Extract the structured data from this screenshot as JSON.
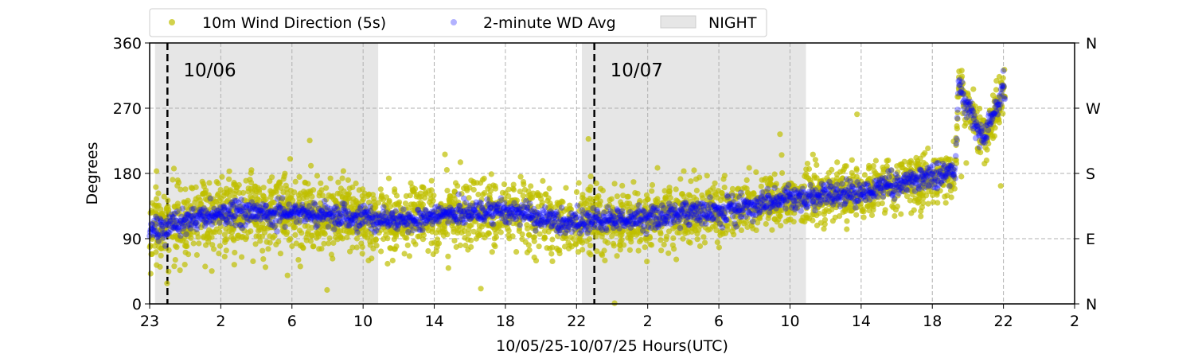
{
  "chart_data": {
    "type": "scatter",
    "title": "",
    "xlabel": "10/05/25-10/07/25  Hours(UTC)",
    "ylabel": "Degrees",
    "x_unit": "hours since axis start",
    "xlim": [
      0,
      52
    ],
    "ylim": [
      0,
      360
    ],
    "x_tick_labels": [
      "23",
      "2",
      "6",
      "10",
      "14",
      "18",
      "22",
      "2",
      "6",
      "10",
      "14",
      "18",
      "22",
      "2"
    ],
    "y_ticks": [
      0,
      90,
      180,
      270,
      360
    ],
    "y_tick_labels": [
      "0",
      "90",
      "180",
      "270",
      "360"
    ],
    "right_y_tick_labels": [
      "N",
      "E",
      "S",
      "W",
      "N"
    ],
    "grid": true,
    "legend": {
      "placement": "top-left-outside",
      "entries": [
        "10m Wind Direction (5s)",
        "2-minute WD Avg",
        "NIGHT"
      ]
    },
    "colors": {
      "wd5s": "#bfbf00",
      "avg": "#0000ff",
      "night": "#e6e6e6"
    },
    "night_spans": [
      [
        0.3,
        12.85
      ],
      [
        24.3,
        36.9
      ]
    ],
    "day_markers": [
      {
        "x": 1.0,
        "label": "10/06"
      },
      {
        "x": 25.0,
        "label": "10/07"
      }
    ],
    "series": [
      {
        "name": "2-minute WD Avg",
        "trend_x": [
          0,
          1,
          2,
          4,
          6,
          8,
          10,
          12,
          14,
          16,
          18,
          20,
          22,
          24,
          26,
          28,
          30,
          32,
          34,
          36,
          38,
          40,
          42,
          44,
          45.3,
          45.5,
          45.8,
          46.2,
          46.5,
          46.9,
          47.3,
          47.7,
          48,
          48.1
        ],
        "trend_y": [
          100,
          105,
          115,
          125,
          128,
          125,
          122,
          118,
          115,
          122,
          125,
          128,
          118,
          112,
          115,
          120,
          125,
          128,
          135,
          145,
          150,
          155,
          165,
          175,
          185,
          310,
          280,
          265,
          245,
          230,
          255,
          270,
          300,
          280
        ],
        "noise_deg": 8
      },
      {
        "name": "10m Wind Direction (5s)",
        "follows": "2-minute WD Avg",
        "spread_deg_start": 28,
        "spread_deg_end": 16,
        "x_end": 48.1
      }
    ]
  }
}
